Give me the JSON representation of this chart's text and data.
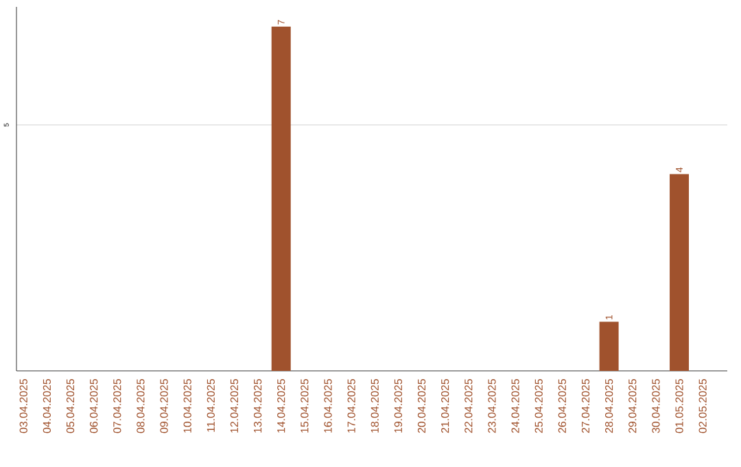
{
  "chart_data": {
    "type": "bar",
    "categories": [
      "03.04.2025",
      "04.04.2025",
      "05.04.2025",
      "06.04.2025",
      "07.04.2025",
      "08.04.2025",
      "09.04.2025",
      "10.04.2025",
      "11.04.2025",
      "12.04.2025",
      "13.04.2025",
      "14.04.2025",
      "15.04.2025",
      "16.04.2025",
      "17.04.2025",
      "18.04.2025",
      "19.04.2025",
      "20.04.2025",
      "21.04.2025",
      "22.04.2025",
      "23.04.2025",
      "24.04.2025",
      "25.04.2025",
      "26.04.2025",
      "27.04.2025",
      "28.04.2025",
      "29.04.2025",
      "30.04.2025",
      "01.05.2025",
      "02.05.2025"
    ],
    "values": [
      0,
      0,
      0,
      0,
      0,
      0,
      0,
      0,
      0,
      0,
      0,
      7,
      0,
      0,
      0,
      0,
      0,
      0,
      0,
      0,
      0,
      0,
      0,
      0,
      0,
      1,
      0,
      0,
      4,
      0
    ],
    "value_labels": [
      null,
      null,
      null,
      null,
      null,
      null,
      null,
      null,
      null,
      null,
      null,
      "7",
      null,
      null,
      null,
      null,
      null,
      null,
      null,
      null,
      null,
      null,
      null,
      null,
      null,
      "1",
      null,
      null,
      "4",
      null
    ],
    "color": "#a0522d",
    "ylim": [
      0,
      7.4
    ],
    "yticks": [
      5
    ],
    "grid": "y"
  }
}
